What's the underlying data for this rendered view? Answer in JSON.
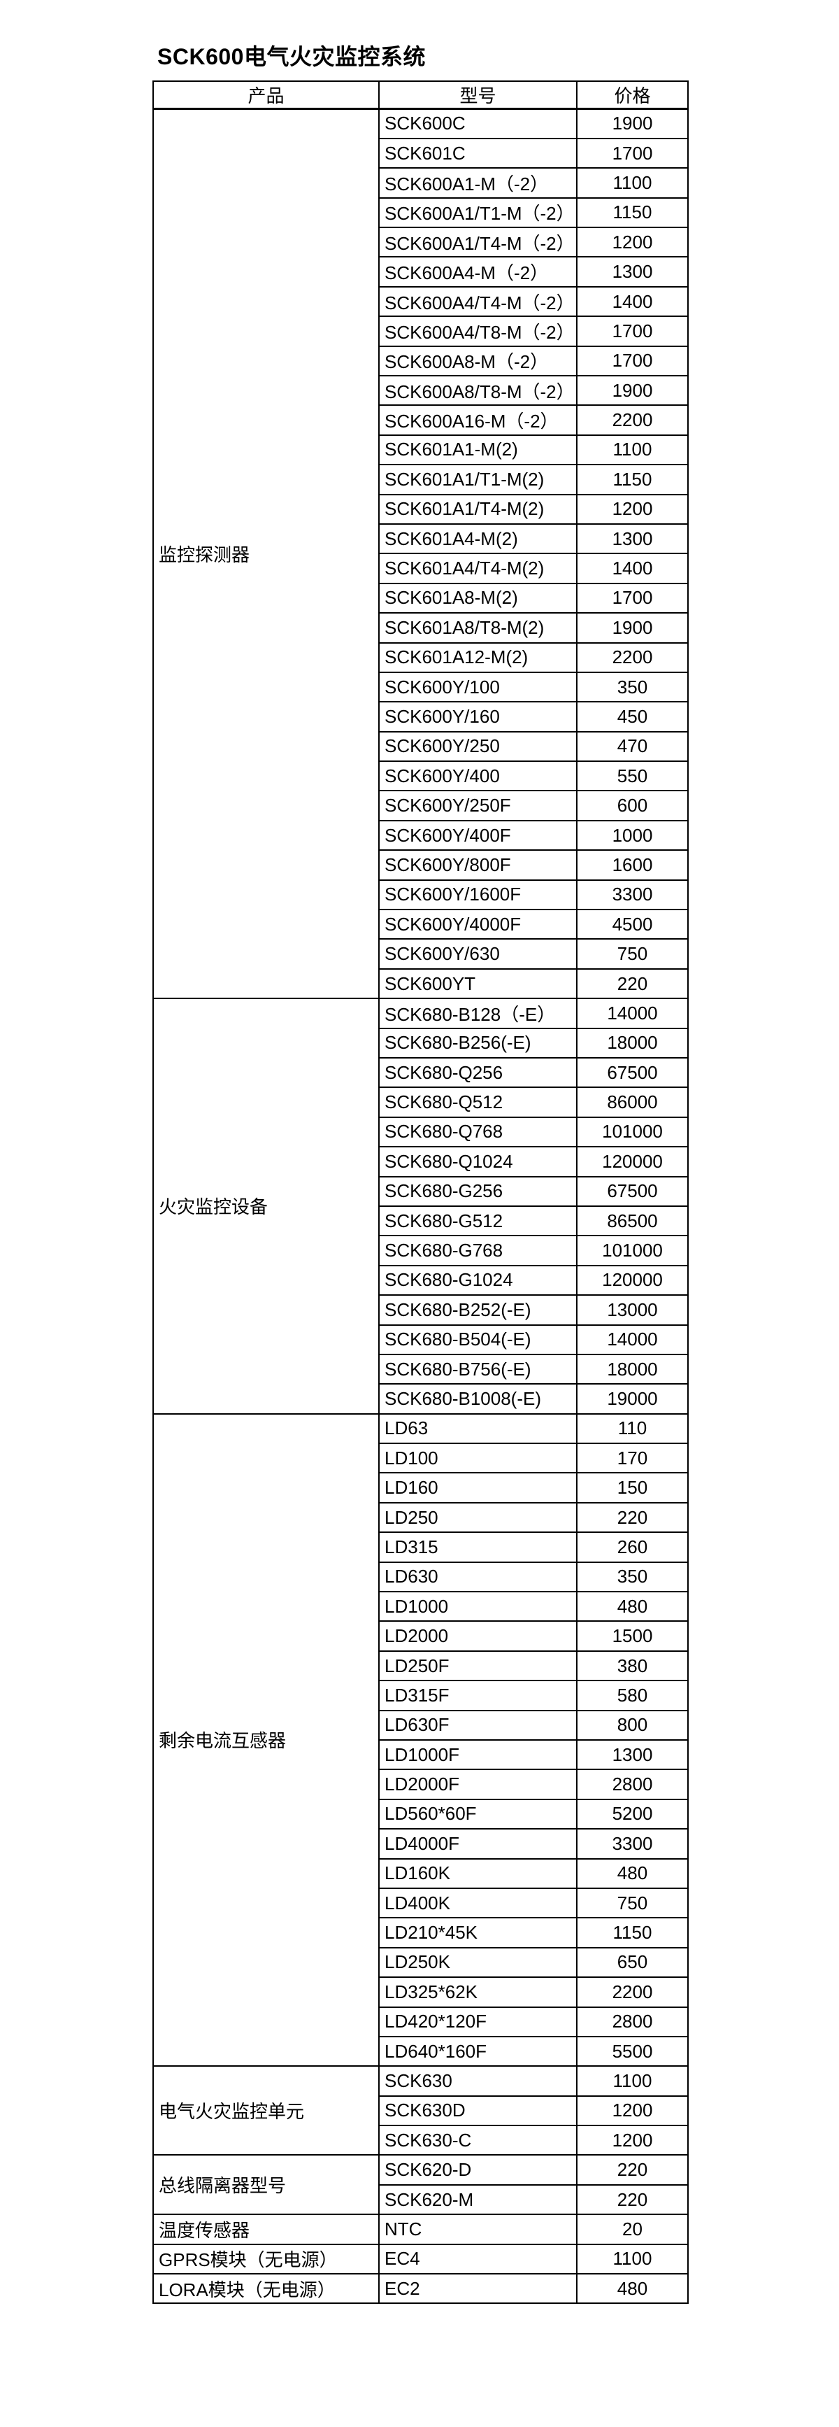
{
  "page": {
    "title": "SCK600电气火灾监控系统"
  },
  "table": {
    "headers": [
      "产品",
      "型号",
      "价格"
    ],
    "groups": [
      {
        "product": "监控探测器",
        "items": [
          {
            "model": "SCK600C",
            "price": "1900"
          },
          {
            "model": "SCK601C",
            "price": "1700"
          },
          {
            "model": "SCK600A1-M（-2）",
            "price": "1100"
          },
          {
            "model": "SCK600A1/T1-M（-2）",
            "price": "1150"
          },
          {
            "model": "SCK600A1/T4-M（-2）",
            "price": "1200"
          },
          {
            "model": "SCK600A4-M（-2）",
            "price": "1300"
          },
          {
            "model": "SCK600A4/T4-M（-2）",
            "price": "1400"
          },
          {
            "model": "SCK600A4/T8-M（-2）",
            "price": "1700"
          },
          {
            "model": "SCK600A8-M（-2）",
            "price": "1700"
          },
          {
            "model": "SCK600A8/T8-M（-2）",
            "price": "1900"
          },
          {
            "model": "SCK600A16-M（-2）",
            "price": "2200"
          },
          {
            "model": "SCK601A1-M(2)",
            "price": "1100"
          },
          {
            "model": "SCK601A1/T1-M(2)",
            "price": "1150"
          },
          {
            "model": "SCK601A1/T4-M(2)",
            "price": "1200"
          },
          {
            "model": "SCK601A4-M(2)",
            "price": "1300"
          },
          {
            "model": "SCK601A4/T4-M(2)",
            "price": "1400"
          },
          {
            "model": "SCK601A8-M(2)",
            "price": "1700"
          },
          {
            "model": "SCK601A8/T8-M(2)",
            "price": "1900"
          },
          {
            "model": "SCK601A12-M(2)",
            "price": "2200"
          },
          {
            "model": "SCK600Y/100",
            "price": "350"
          },
          {
            "model": "SCK600Y/160",
            "price": "450"
          },
          {
            "model": "SCK600Y/250",
            "price": "470"
          },
          {
            "model": "SCK600Y/400",
            "price": "550"
          },
          {
            "model": "SCK600Y/250F",
            "price": "600"
          },
          {
            "model": "SCK600Y/400F",
            "price": "1000"
          },
          {
            "model": "SCK600Y/800F",
            "price": "1600"
          },
          {
            "model": "SCK600Y/1600F",
            "price": "3300"
          },
          {
            "model": "SCK600Y/4000F",
            "price": "4500"
          },
          {
            "model": "SCK600Y/630",
            "price": "750"
          },
          {
            "model": "SCK600YT",
            "price": "220"
          }
        ]
      },
      {
        "product": "火灾监控设备",
        "items": [
          {
            "model": "SCK680-B128（-E）",
            "price": "14000"
          },
          {
            "model": "SCK680-B256(-E)",
            "price": "18000"
          },
          {
            "model": "SCK680-Q256",
            "price": "67500"
          },
          {
            "model": "SCK680-Q512",
            "price": "86000"
          },
          {
            "model": "SCK680-Q768",
            "price": "101000"
          },
          {
            "model": "SCK680-Q1024",
            "price": "120000"
          },
          {
            "model": "SCK680-G256",
            "price": "67500"
          },
          {
            "model": "SCK680-G512",
            "price": "86500"
          },
          {
            "model": "SCK680-G768",
            "price": "101000"
          },
          {
            "model": "SCK680-G1024",
            "price": "120000"
          },
          {
            "model": "SCK680-B252(-E)",
            "price": "13000"
          },
          {
            "model": "SCK680-B504(-E)",
            "price": "14000"
          },
          {
            "model": "SCK680-B756(-E)",
            "price": "18000"
          },
          {
            "model": "SCK680-B1008(-E)",
            "price": "19000"
          }
        ]
      },
      {
        "product": "剩余电流互感器",
        "items": [
          {
            "model": "LD63",
            "price": "110"
          },
          {
            "model": "LD100",
            "price": "170"
          },
          {
            "model": "LD160",
            "price": "150"
          },
          {
            "model": "LD250",
            "price": "220"
          },
          {
            "model": "LD315",
            "price": "260"
          },
          {
            "model": "LD630",
            "price": "350"
          },
          {
            "model": "LD1000",
            "price": "480"
          },
          {
            "model": "LD2000",
            "price": "1500"
          },
          {
            "model": "LD250F",
            "price": "380"
          },
          {
            "model": "LD315F",
            "price": "580"
          },
          {
            "model": "LD630F",
            "price": "800"
          },
          {
            "model": "LD1000F",
            "price": "1300"
          },
          {
            "model": "LD2000F",
            "price": "2800"
          },
          {
            "model": "LD560*60F",
            "price": "5200"
          },
          {
            "model": "LD4000F",
            "price": "3300"
          },
          {
            "model": "LD160K",
            "price": "480"
          },
          {
            "model": "LD400K",
            "price": "750"
          },
          {
            "model": "LD210*45K",
            "price": "1150"
          },
          {
            "model": "LD250K",
            "price": "650"
          },
          {
            "model": "LD325*62K",
            "price": "2200"
          },
          {
            "model": "LD420*120F",
            "price": "2800"
          },
          {
            "model": "LD640*160F",
            "price": "5500"
          }
        ]
      },
      {
        "product": "电气火灾监控单元",
        "items": [
          {
            "model": "SCK630",
            "price": "1100"
          },
          {
            "model": "SCK630D",
            "price": "1200"
          },
          {
            "model": "SCK630-C",
            "price": "1200"
          }
        ]
      },
      {
        "product": "总线隔离器型号",
        "items": [
          {
            "model": "SCK620-D",
            "price": "220"
          },
          {
            "model": "SCK620-M",
            "price": "220"
          }
        ]
      },
      {
        "product": "温度传感器",
        "items": [
          {
            "model": "NTC",
            "price": "20"
          }
        ]
      },
      {
        "product": "GPRS模块（无电源）",
        "items": [
          {
            "model": "EC4",
            "price": "1100"
          }
        ]
      },
      {
        "product": "LORA模块（无电源）",
        "items": [
          {
            "model": "EC2",
            "price": "480"
          }
        ]
      }
    ]
  }
}
